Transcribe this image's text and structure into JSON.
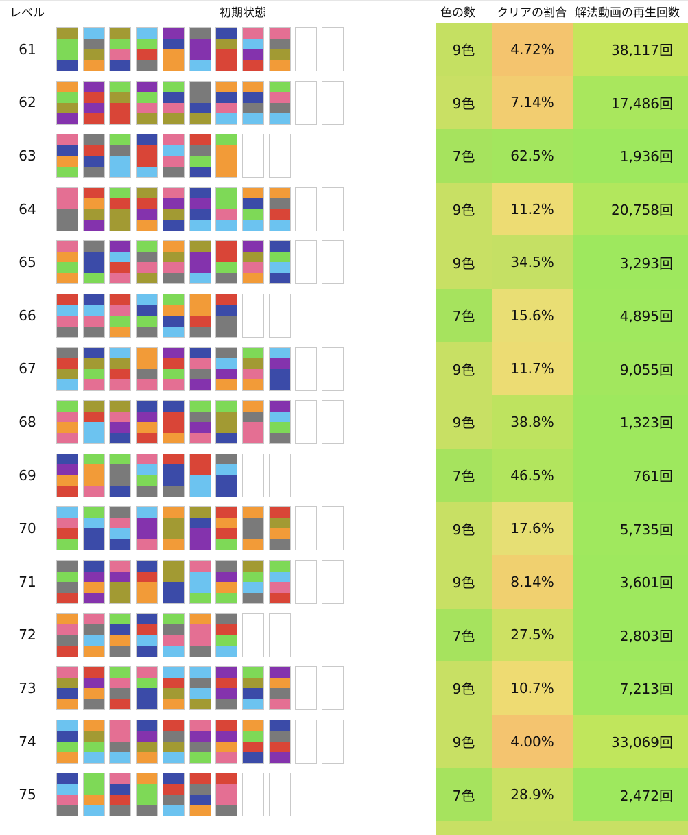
{
  "headers": {
    "level": "レベル",
    "initial": "初期状態",
    "colors": "色の数",
    "rate": "クリアの割合",
    "plays": "解法動画の再生回数"
  },
  "palette": {
    "L": "#7ed957",
    "O": "#f29b38",
    "B": "#3b4ba8",
    "P": "#e46f93",
    "G": "#7a7a7a",
    "R": "#d94537",
    "S": "#6cc3f0",
    "V": "#8433ad",
    "K": "#a29a33"
  },
  "rows": [
    {
      "level": "61",
      "colors": "9色",
      "rate": "4.72%",
      "plays": "38,117回",
      "colors_bg": "#c5e062",
      "rate_bg": "#f4c46e",
      "plays_bg": "#c6e55c",
      "tubes": [
        "KLLB",
        "SGKO",
        "KLPB",
        "SLRG",
        "VBOO",
        "GVVS",
        "BKRR",
        "PSVR",
        "PGKO",
        "",
        ""
      ]
    },
    {
      "level": "62",
      "colors": "9色",
      "rate": "7.14%",
      "plays": "17,486回",
      "colors_bg": "#c9e064",
      "rate_bg": "#f2cd70",
      "plays_bg": "#a9e75d",
      "tubes": [
        "OLKV",
        "VRVR",
        "LKRR",
        "VLPK",
        "LBPK",
        "GGBK",
        "OBPS",
        "OBGS",
        "LPGS",
        "",
        ""
      ]
    },
    {
      "level": "63",
      "colors": "7色",
      "rate": "62.5%",
      "plays": "1,936回",
      "colors_bg": "#a6e35e",
      "rate_bg": "#a3e65e",
      "plays_bg": "#9ee85e",
      "tubes": [
        "PBOL",
        "GRBG",
        "LGSS",
        "BRRS",
        "PSPG",
        "RGLB",
        "LOOO",
        "",
        ""
      ]
    },
    {
      "level": "64",
      "colors": "9色",
      "rate": "11.2%",
      "plays": "20,758回",
      "colors_bg": "#c8e064",
      "rate_bg": "#eddc73",
      "plays_bg": "#b2e75d",
      "tubes": [
        "PPGG",
        "ROKV",
        "LRKK",
        "KRVO",
        "PVKB",
        "BVBS",
        "LLPS",
        "OBLS",
        "OGRS",
        "",
        ""
      ]
    },
    {
      "level": "65",
      "colors": "9色",
      "rate": "34.5%",
      "plays": "3,293回",
      "colors_bg": "#c8e064",
      "rate_bg": "#c5e064",
      "plays_bg": "#9ee85e",
      "tubes": [
        "POLO",
        "GBBL",
        "VSRP",
        "LGPK",
        "OKPG",
        "KVVS",
        "RRLG",
        "VKPO",
        "BLSB",
        "",
        ""
      ]
    },
    {
      "level": "66",
      "colors": "7色",
      "rate": "15.6%",
      "plays": "4,895回",
      "colors_bg": "#a6e35e",
      "rate_bg": "#e9de74",
      "plays_bg": "#a0e85e",
      "tubes": [
        "RSPG",
        "BSPG",
        "RPLO",
        "SBLG",
        "LOBS",
        "OORG",
        "RBGG",
        "",
        ""
      ]
    },
    {
      "level": "67",
      "colors": "9色",
      "rate": "11.7%",
      "plays": "9,055回",
      "colors_bg": "#c8e064",
      "rate_bg": "#ecdc73",
      "plays_bg": "#a2e75e",
      "tubes": [
        "GRKS",
        "BKLP",
        "SKRP",
        "OOGP",
        "VRLP",
        "BPGV",
        "GSVO",
        "LKPO",
        "SVBB",
        "",
        ""
      ]
    },
    {
      "level": "68",
      "colors": "9色",
      "rate": "38.8%",
      "plays": "1,323回",
      "colors_bg": "#c8e064",
      "rate_bg": "#bee35f",
      "plays_bg": "#9ee85e",
      "tubes": [
        "LPOP",
        "KRSS",
        "KPVB",
        "BVOR",
        "BRRO",
        "LGVP",
        "LKKB",
        "OGPP",
        "VSLG",
        "",
        ""
      ]
    },
    {
      "level": "69",
      "colors": "7色",
      "rate": "46.5%",
      "plays": "761回",
      "colors_bg": "#a6e35e",
      "rate_bg": "#b2e55e",
      "plays_bg": "#9ee85e",
      "tubes": [
        "BVOR",
        "LOOP",
        "LGGB",
        "PSLG",
        "RBBG",
        "RRSS",
        "GSBB",
        "",
        ""
      ]
    },
    {
      "level": "70",
      "colors": "9色",
      "rate": "17.6%",
      "plays": "5,735回",
      "colors_bg": "#c8e064",
      "rate_bg": "#e6df74",
      "plays_bg": "#a0e85e",
      "tubes": [
        "SPRL",
        "LSBB",
        "GPSB",
        "SVVP",
        "OKKO",
        "KBVV",
        "RORL",
        "OGGO",
        "RKOG",
        "",
        ""
      ]
    },
    {
      "level": "71",
      "colors": "9色",
      "rate": "8.14%",
      "plays": "3,601回",
      "colors_bg": "#c8e064",
      "rate_bg": "#f0d06f",
      "plays_bg": "#9ee85e",
      "tubes": [
        "GLGR",
        "BVOV",
        "PVKK",
        "BROO",
        "KKBB",
        "PSSL",
        "GVOL",
        "KLSG",
        "LSPR",
        "",
        ""
      ]
    },
    {
      "level": "72",
      "colors": "7色",
      "rate": "27.5%",
      "plays": "2,803回",
      "colors_bg": "#a6e35e",
      "rate_bg": "#cde163",
      "plays_bg": "#9ee85e",
      "tubes": [
        "OPGR",
        "PGSO",
        "LBOG",
        "BRSB",
        "LGPS",
        "OPPG",
        "GRLS",
        "",
        ""
      ]
    },
    {
      "level": "73",
      "colors": "9色",
      "rate": "10.7%",
      "plays": "7,213回",
      "colors_bg": "#c8e064",
      "rate_bg": "#eedb72",
      "plays_bg": "#a1e85e",
      "tubes": [
        "PKBO",
        "RVOG",
        "LPGR",
        "PLBB",
        "SRKO",
        "SGSK",
        "VRVG",
        "LKBS",
        "VOGP",
        "",
        ""
      ]
    },
    {
      "level": "74",
      "colors": "9色",
      "rate": "4.00%",
      "plays": "33,069回",
      "colors_bg": "#c8e064",
      "rate_bg": "#f4c46f",
      "plays_bg": "#c0e65c",
      "tubes": [
        "SBLO",
        "OKLS",
        "PPGS",
        "BVKO",
        "RGKS",
        "PVGL",
        "RVOP",
        "OLRB",
        "BGRV",
        "",
        ""
      ]
    },
    {
      "level": "75",
      "colors": "7色",
      "rate": "28.9%",
      "plays": "2,472回",
      "colors_bg": "#a6e35e",
      "rate_bg": "#cae163",
      "plays_bg": "#9ee85e",
      "tubes": [
        "BSPG",
        "LLOS",
        "PBRG",
        "OLLG",
        "BRGS",
        "RGBO",
        "RPPG",
        "",
        ""
      ]
    }
  ]
}
